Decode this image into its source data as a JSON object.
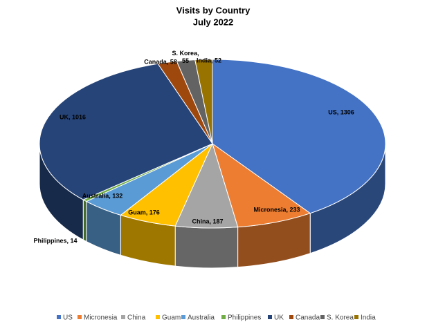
{
  "chart_data": {
    "type": "pie3d",
    "title": "Visits by Country",
    "subtitle": "July 2022",
    "categories": [
      "US",
      "Micronesia",
      "China",
      "Guam",
      "Australia",
      "Philippines",
      "UK",
      "Canada",
      "S. Korea",
      "India"
    ],
    "values": [
      1306,
      233,
      187,
      176,
      132,
      14,
      1016,
      58,
      55,
      52
    ],
    "value_labels": [
      "US, 1306",
      "Micronesia, 233",
      "China, 187",
      "Guam, 176",
      "Australia, 132",
      "Philippines, 14",
      "UK, 1016",
      "Canada, 58",
      "S. Korea,\n55",
      "India, 52"
    ],
    "colors": [
      "#4472c4",
      "#ed7d31",
      "#a5a5a5",
      "#ffc000",
      "#5b9bd5",
      "#70ad47",
      "#264478",
      "#9e480e",
      "#636363",
      "#997300"
    ],
    "legend": "bottom"
  }
}
